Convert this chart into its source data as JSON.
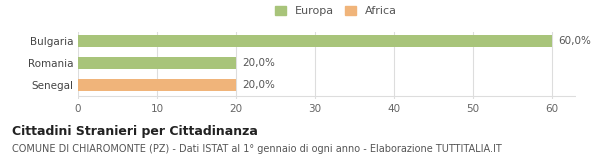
{
  "categories": [
    "Bulgaria",
    "Romania",
    "Senegal"
  ],
  "values": [
    60.0,
    20.0,
    20.0
  ],
  "bar_colors": [
    "#a8c47a",
    "#a8c47a",
    "#f0b47a"
  ],
  "legend_labels": [
    "Europa",
    "Africa"
  ],
  "legend_colors": [
    "#a8c47a",
    "#f0b47a"
  ],
  "xlim": [
    0,
    63
  ],
  "xticks": [
    0,
    10,
    20,
    30,
    40,
    50,
    60
  ],
  "bar_labels": [
    "60,0%",
    "20,0%",
    "20,0%"
  ],
  "title": "Cittadini Stranieri per Cittadinanza",
  "subtitle": "COMUNE DI CHIAROMONTE (PZ) - Dati ISTAT al 1° gennaio di ogni anno - Elaborazione TUTTITALIA.IT",
  "title_fontsize": 9,
  "subtitle_fontsize": 7,
  "background_color": "#ffffff",
  "grid_color": "#dddddd",
  "bar_height": 0.55,
  "label_fontsize": 7.5,
  "tick_fontsize": 7.5
}
